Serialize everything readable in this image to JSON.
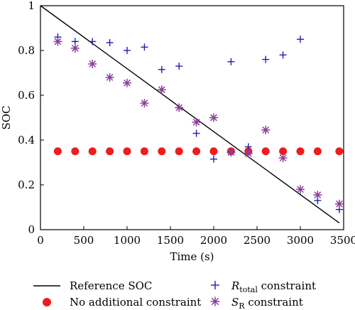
{
  "chart_data": {
    "type": "scatter",
    "xlabel": "Time (s)",
    "ylabel": "SOC",
    "xlim": [
      0,
      3500
    ],
    "ylim": [
      0,
      1
    ],
    "xticks": [
      "0",
      "500",
      "1000",
      "1500",
      "2000",
      "2500",
      "3000",
      "3500"
    ],
    "yticks": [
      "0",
      "0.2",
      "0.4",
      "0.6",
      "0.8",
      "1"
    ],
    "grid": false,
    "legend_position": "bottom",
    "reference": {
      "name": "Reference SOC",
      "color": "#000000",
      "x": [
        0,
        3450
      ],
      "y": [
        1.0,
        0.03
      ]
    },
    "series": [
      {
        "name": "No additional constraint",
        "marker": "dot",
        "color": "#ee1c1c",
        "x": [
          200,
          400,
          600,
          800,
          1000,
          1200,
          1400,
          1600,
          1800,
          2000,
          2200,
          2400,
          2600,
          2800,
          3000,
          3200,
          3450
        ],
        "y": [
          0.35,
          0.35,
          0.35,
          0.35,
          0.35,
          0.35,
          0.35,
          0.35,
          0.35,
          0.35,
          0.35,
          0.35,
          0.35,
          0.35,
          0.35,
          0.35,
          0.35
        ]
      },
      {
        "name_main": "R",
        "name_sub": "total",
        "name_rest": " constraint",
        "marker": "plus",
        "color": "#1f1fb4",
        "x": [
          200,
          400,
          600,
          800,
          1000,
          1200,
          1400,
          1600,
          1800,
          2000,
          2200,
          2400,
          2600,
          2800,
          3000,
          3200,
          3450
        ],
        "y": [
          0.86,
          0.84,
          0.84,
          0.835,
          0.8,
          0.815,
          0.715,
          0.73,
          0.43,
          0.315,
          0.75,
          0.37,
          0.76,
          0.78,
          0.85,
          0.13,
          0.09
        ]
      },
      {
        "name_main": "S",
        "name_sub": "R",
        "name_rest": " constraint",
        "marker": "asterisk",
        "color": "#8a3f9a",
        "x": [
          200,
          400,
          600,
          800,
          1000,
          1200,
          1400,
          1600,
          1800,
          2000,
          2200,
          2400,
          2600,
          2800,
          3000,
          3200,
          3450
        ],
        "y": [
          0.84,
          0.81,
          0.74,
          0.68,
          0.655,
          0.565,
          0.625,
          0.545,
          0.48,
          0.5,
          0.345,
          0.34,
          0.445,
          0.32,
          0.18,
          0.155,
          0.115
        ]
      }
    ]
  }
}
